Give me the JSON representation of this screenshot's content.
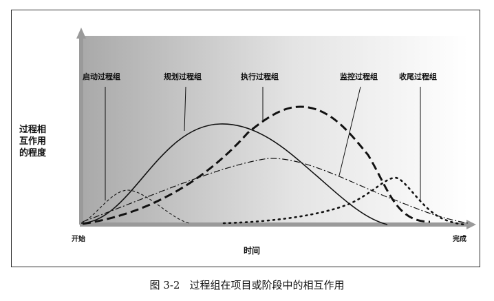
{
  "diagram": {
    "y_axis_label_lines": [
      "过程相",
      "互作用",
      "的程度"
    ],
    "x_axis_start": "开始",
    "x_axis_end": "完成",
    "x_axis_label": "时间",
    "process_groups": {
      "initiating": "启动过程组",
      "planning": "规划过程组",
      "executing": "执行过程组",
      "monitoring": "监控过程组",
      "closing": "收尾过程组"
    }
  },
  "caption": {
    "number": "图 3-2",
    "text": "过程组在项目或阶段中的相互作用"
  },
  "colors": {
    "background_gradient_start": "#a9a9a9",
    "background_gradient_end": "#ffffff",
    "axis": "#9a9a9a",
    "curve": "#111111"
  }
}
